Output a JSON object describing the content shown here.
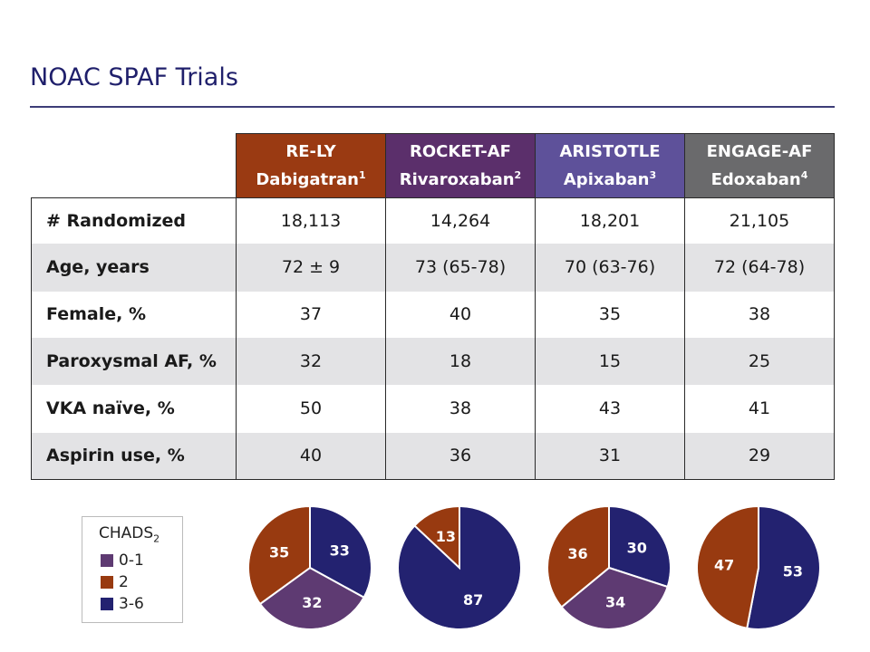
{
  "title": "NOAC SPAF Trials",
  "trials": [
    {
      "name": "RE-LY",
      "drug": "Dabigatran",
      "ref": "1",
      "color": "#9a3a12"
    },
    {
      "name": "ROCKET-AF",
      "drug": "Rivaroxaban",
      "ref": "2",
      "color": "#5b2f6b"
    },
    {
      "name": "ARISTOTLE",
      "drug": "Apixaban",
      "ref": "3",
      "color": "#5e519a"
    },
    {
      "name": "ENGAGE-AF",
      "drug": "Edoxaban",
      "ref": "4",
      "color": "#6a6a6c"
    }
  ],
  "rows": [
    {
      "label": "# Randomized",
      "values": [
        "18,113",
        "14,264",
        "18,201",
        "21,105"
      ],
      "shaded": false
    },
    {
      "label": "Age, years",
      "values": [
        "72 ± 9",
        "73 (65-78)",
        "70 (63-76)",
        "72 (64-78)"
      ],
      "shaded": true
    },
    {
      "label": "Female, %",
      "values": [
        "37",
        "40",
        "35",
        "38"
      ],
      "shaded": false
    },
    {
      "label": "Paroxysmal AF, %",
      "values": [
        "32",
        "18",
        "15",
        "25"
      ],
      "shaded": true
    },
    {
      "label": "VKA naïve, %",
      "values": [
        "50",
        "38",
        "43",
        "41"
      ],
      "shaded": false
    },
    {
      "label": "Aspirin use, %",
      "values": [
        "40",
        "36",
        "31",
        "29"
      ],
      "shaded": true
    }
  ],
  "legend": {
    "title": "CHADS",
    "title_sub": "2",
    "items": [
      {
        "label": "0-1",
        "color": "#5e3a72"
      },
      {
        "label": "2",
        "color": "#983a10"
      },
      {
        "label": "3-6",
        "color": "#232270"
      }
    ]
  },
  "chart_data": {
    "type": "pie",
    "categories": [
      "0-1",
      "2",
      "3-6"
    ],
    "colors": [
      "#5e3a72",
      "#983a10",
      "#232270"
    ],
    "pies": [
      {
        "trial": "RE-LY",
        "values": [
          32,
          35,
          33
        ],
        "labels": [
          "32",
          "35",
          "33"
        ]
      },
      {
        "trial": "ROCKET-AF",
        "values": [
          0,
          13,
          87
        ],
        "labels": [
          "",
          "13",
          "87"
        ]
      },
      {
        "trial": "ARISTOTLE",
        "values": [
          34,
          36,
          30
        ],
        "labels": [
          "34",
          "36",
          "30"
        ]
      },
      {
        "trial": "ENGAGE-AF",
        "values": [
          0,
          47,
          53
        ],
        "labels": [
          "",
          "47",
          "53"
        ]
      }
    ]
  }
}
